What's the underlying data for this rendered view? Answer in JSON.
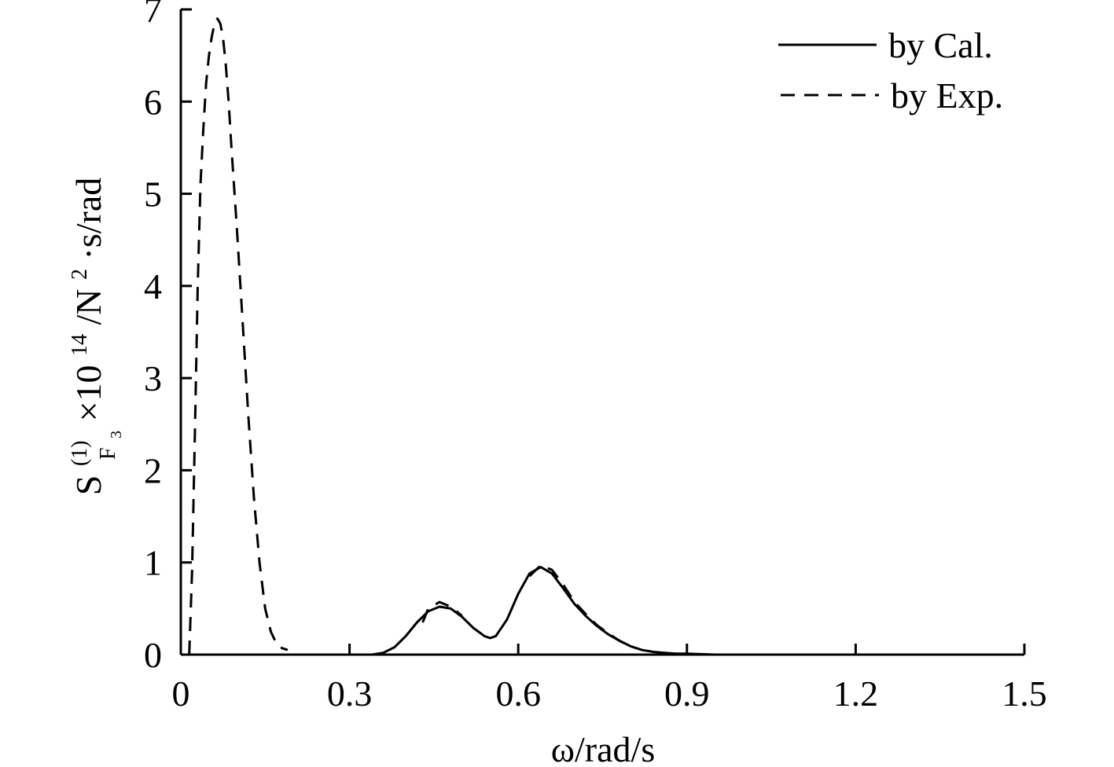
{
  "chart_data": {
    "type": "line",
    "title": "",
    "xlabel": "ω/rad/s",
    "ylabel": {
      "base": "S",
      "superscript": "(1)",
      "subscript": "F",
      "subscript_sub": "3",
      "rest_prefix": "×10",
      "rest_exponent": "14",
      "rest_mid": "/N",
      "rest_exponent2": "2",
      "rest_suffix": "·s/rad"
    },
    "xlim": [
      0,
      1.5
    ],
    "ylim": [
      0,
      7
    ],
    "x_ticks": [
      0,
      0.3,
      0.6,
      0.9,
      1.2,
      1.5
    ],
    "x_tick_labels": [
      "0",
      "0.3",
      "0.6",
      "0.9",
      "1.2",
      "1.5"
    ],
    "y_ticks": [
      0,
      1,
      2,
      3,
      4,
      5,
      6,
      7
    ],
    "y_tick_labels": [
      "0",
      "1",
      "2",
      "3",
      "4",
      "5",
      "6",
      "7"
    ],
    "grid": false,
    "legend_position": "top-right",
    "series": [
      {
        "name": "by Cal.",
        "style": "solid",
        "color": "#000000",
        "x": [
          0.0,
          0.3,
          0.34,
          0.36,
          0.38,
          0.4,
          0.42,
          0.44,
          0.46,
          0.48,
          0.5,
          0.52,
          0.54,
          0.55,
          0.56,
          0.58,
          0.6,
          0.62,
          0.64,
          0.66,
          0.68,
          0.7,
          0.72,
          0.74,
          0.76,
          0.78,
          0.8,
          0.82,
          0.84,
          0.86,
          0.88,
          0.9,
          0.95,
          1.0,
          1.1,
          1.2,
          1.3,
          1.4,
          1.5
        ],
        "y": [
          0.0,
          0.0,
          0.0,
          0.02,
          0.08,
          0.2,
          0.35,
          0.47,
          0.52,
          0.5,
          0.41,
          0.29,
          0.2,
          0.18,
          0.2,
          0.38,
          0.66,
          0.88,
          0.95,
          0.88,
          0.72,
          0.55,
          0.42,
          0.31,
          0.22,
          0.15,
          0.09,
          0.05,
          0.03,
          0.02,
          0.01,
          0.01,
          0.0,
          0.0,
          0.0,
          0.0,
          0.0,
          0.0,
          0.0
        ]
      },
      {
        "name": "by Exp.",
        "style": "dashed",
        "color": "#000000",
        "x": [
          0.015,
          0.02,
          0.025,
          0.03,
          0.035,
          0.04,
          0.045,
          0.05,
          0.055,
          0.06,
          0.065,
          0.07,
          0.075,
          0.08,
          0.085,
          0.09,
          0.1,
          0.11,
          0.12,
          0.13,
          0.14,
          0.15,
          0.16,
          0.17,
          0.18,
          0.19,
          null,
          0.43,
          0.44,
          0.46,
          0.48,
          0.5,
          null,
          0.62,
          0.64,
          0.66,
          0.68,
          0.7,
          0.72,
          0.74,
          0.76,
          0.78,
          0.8
        ],
        "y": [
          0.0,
          0.9,
          2.4,
          4.0,
          5.1,
          5.7,
          6.2,
          6.5,
          6.7,
          6.85,
          6.9,
          6.85,
          6.7,
          6.4,
          6.0,
          5.5,
          4.6,
          3.6,
          2.6,
          1.7,
          1.0,
          0.5,
          0.25,
          0.12,
          0.07,
          0.05,
          null,
          0.35,
          0.5,
          0.57,
          0.52,
          0.42,
          null,
          0.85,
          0.97,
          0.92,
          0.76,
          0.57,
          0.44,
          0.32,
          0.23,
          0.15,
          0.09
        ]
      }
    ]
  }
}
